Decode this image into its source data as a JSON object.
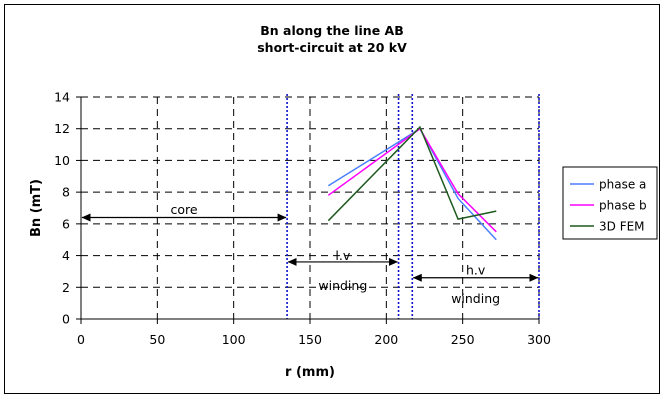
{
  "chart_data": {
    "type": "line",
    "title": "Bn along the line AB",
    "subtitle": "short-circuit at 20 kV",
    "xlabel": "r (mm)",
    "ylabel": "Bn (mT)",
    "xlim": [
      0,
      300
    ],
    "ylim": [
      0,
      14
    ],
    "x_ticks": [
      0,
      50,
      100,
      150,
      200,
      250,
      300
    ],
    "y_ticks": [
      0,
      2,
      4,
      6,
      8,
      10,
      12,
      14
    ],
    "grid": "dashed",
    "legend_position": "right",
    "series": [
      {
        "name": "phase a",
        "color": "#4a7fff",
        "x": [
          162,
          222,
          247,
          272
        ],
        "y": [
          8.4,
          12.0,
          7.6,
          5.0
        ]
      },
      {
        "name": "phase b",
        "color": "#ff00ff",
        "x": [
          162,
          222,
          247,
          272
        ],
        "y": [
          7.8,
          12.0,
          7.9,
          5.5
        ]
      },
      {
        "name": "3D FEM",
        "color": "#1e5a1e",
        "x": [
          162,
          222,
          247,
          272
        ],
        "y": [
          6.2,
          12.1,
          6.3,
          6.8
        ]
      }
    ],
    "boundaries": {
      "color": "#1010d0",
      "x": [
        135,
        208,
        217,
        300
      ]
    },
    "annotations": [
      {
        "text": "core",
        "from": 0,
        "to": 135,
        "y": 6.4,
        "label_y": 6.9
      },
      {
        "text": "l.v",
        "from": 135,
        "to": 208,
        "y": 3.6,
        "label_y": 4.0
      },
      {
        "text": "winding",
        "from": 135,
        "to": 208,
        "y": 3.6,
        "label_y": 2.1
      },
      {
        "text": "h.v",
        "from": 217,
        "to": 300,
        "y": 2.6,
        "label_y": 3.1
      },
      {
        "text": "winding",
        "from": 217,
        "to": 300,
        "y": 2.6,
        "label_y": 1.3
      }
    ]
  }
}
